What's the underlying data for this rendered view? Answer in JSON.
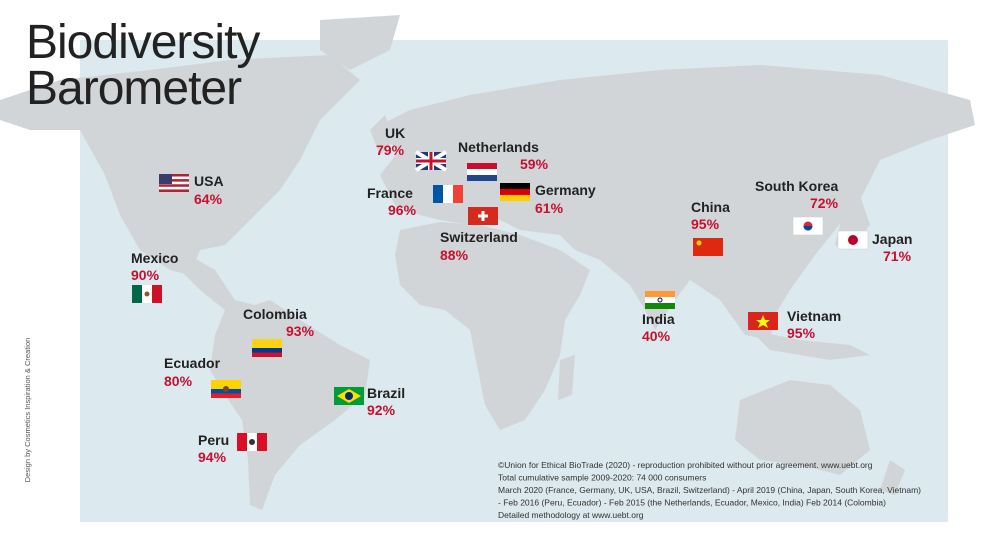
{
  "title": {
    "lines": [
      "Biodiversity",
      "Barometer"
    ]
  },
  "countries": [
    {
      "name": "UK",
      "score": "79%"
    },
    {
      "name": "Netherlands",
      "score": "59%"
    },
    {
      "name": "France",
      "score": "96%"
    },
    {
      "name": "Germany",
      "score": "61%"
    },
    {
      "name": "Switzerland",
      "score": "88%"
    },
    {
      "name": "USA",
      "score": "64%"
    },
    {
      "name": "Mexico",
      "score": "90%"
    },
    {
      "name": "Colombia",
      "score": "93%"
    },
    {
      "name": "Ecuador",
      "score": "80%"
    },
    {
      "name": "Peru",
      "score": "94%"
    },
    {
      "name": "Brazil",
      "score": "92%"
    },
    {
      "name": "China",
      "score": "95%"
    },
    {
      "name": "India",
      "score": "40%"
    },
    {
      "name": "South Korea",
      "score": "72%"
    },
    {
      "name": "Japan",
      "score": "71%"
    },
    {
      "name": "Vietnam",
      "score": "95%"
    }
  ],
  "footnote": {
    "lines": [
      "©Union for Ethical BioTrade (2020) - reproduction prohibited without prior agreement. www.uebt.org",
      "Total cumulative sample 2009-2020: 74 000 consumers",
      "March 2020 (France, Germany, UK, USA, Brazil, Switzerland) - April 2019 (China, Japan, South Korea, Vietnam)",
      "- Feb 2016 (Peru, Ecuador) -  Feb 2015 (the Netherlands, Ecuador, Mexico, India) Feb 2014 (Colombia)",
      "Detailed methodology at www.uebt.org"
    ]
  },
  "credit": "Design by Cosmetics Inspiration & Creation"
}
